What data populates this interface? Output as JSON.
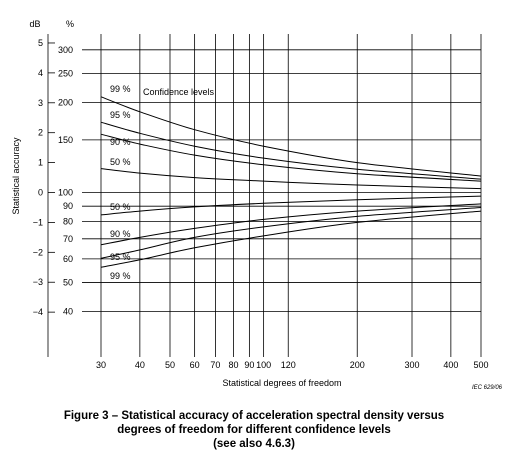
{
  "figure": {
    "caption_lines": [
      "Figure 3 – Statistical accuracy of acceleration spectral density versus",
      "degrees of freedom for different confidence levels",
      "(see also 4.6.3)"
    ],
    "ref_code": "IEC   629/06"
  },
  "chart_data": {
    "type": "line",
    "xlabel": "Statistical degrees of freedom",
    "ylabel": "Statistical accuracy",
    "x_scale": "log",
    "xlim": [
      30,
      500
    ],
    "x_ticks": [
      30,
      40,
      50,
      60,
      70,
      80,
      90,
      100,
      120,
      200,
      300,
      400,
      500
    ],
    "ylim_db": [
      -5.5,
      5.3
    ],
    "db_axis": {
      "unit": "dB",
      "ticks": [
        5,
        4,
        3,
        2,
        1,
        0,
        -1,
        -2,
        -3,
        -4
      ],
      "labels": [
        "5",
        "4",
        "3",
        "2",
        "1",
        "0",
        "−1",
        "−2",
        "−3",
        "−4"
      ]
    },
    "percent_axis": {
      "unit": "%",
      "ticks": [
        300,
        250,
        200,
        150,
        100,
        90,
        80,
        70,
        60,
        50,
        40
      ],
      "labels": [
        "300",
        "250",
        "200",
        "150",
        "100",
        "90",
        "80",
        "70",
        "60",
        "50",
        "40"
      ]
    },
    "annotation": "Confidence levels",
    "grid": true,
    "series": [
      {
        "name": "99 %",
        "x": [
          30,
          40,
          60,
          100,
          200,
          500
        ],
        "y_db": [
          3.2,
          2.7,
          2.1,
          1.55,
          1.0,
          0.55
        ]
      },
      {
        "name": "95 %",
        "x": [
          30,
          40,
          60,
          100,
          200,
          500
        ],
        "y_db": [
          2.35,
          1.98,
          1.55,
          1.15,
          0.78,
          0.45
        ]
      },
      {
        "name": "90 %",
        "x": [
          30,
          40,
          60,
          100,
          200,
          500
        ],
        "y_db": [
          1.95,
          1.62,
          1.25,
          0.93,
          0.63,
          0.38
        ]
      },
      {
        "name": "50 %",
        "x": [
          30,
          40,
          60,
          100,
          200,
          500
        ],
        "y_db": [
          0.8,
          0.65,
          0.5,
          0.38,
          0.25,
          0.13
        ]
      },
      {
        "name": "50 %",
        "x": [
          30,
          40,
          60,
          100,
          200,
          500
        ],
        "y_db": [
          -0.75,
          -0.62,
          -0.48,
          -0.36,
          -0.24,
          -0.12
        ]
      },
      {
        "name": "90 %",
        "x": [
          30,
          40,
          60,
          100,
          200,
          500
        ],
        "y_db": [
          -1.75,
          -1.5,
          -1.2,
          -0.9,
          -0.62,
          -0.38
        ]
      },
      {
        "name": "95 %",
        "x": [
          30,
          40,
          60,
          100,
          200,
          500
        ],
        "y_db": [
          -2.2,
          -1.92,
          -1.5,
          -1.15,
          -0.8,
          -0.5
        ]
      },
      {
        "name": "99 %",
        "x": [
          30,
          40,
          60,
          100,
          200,
          500
        ],
        "y_db": [
          -2.5,
          -2.25,
          -1.85,
          -1.45,
          -1.0,
          -0.62
        ]
      }
    ]
  }
}
